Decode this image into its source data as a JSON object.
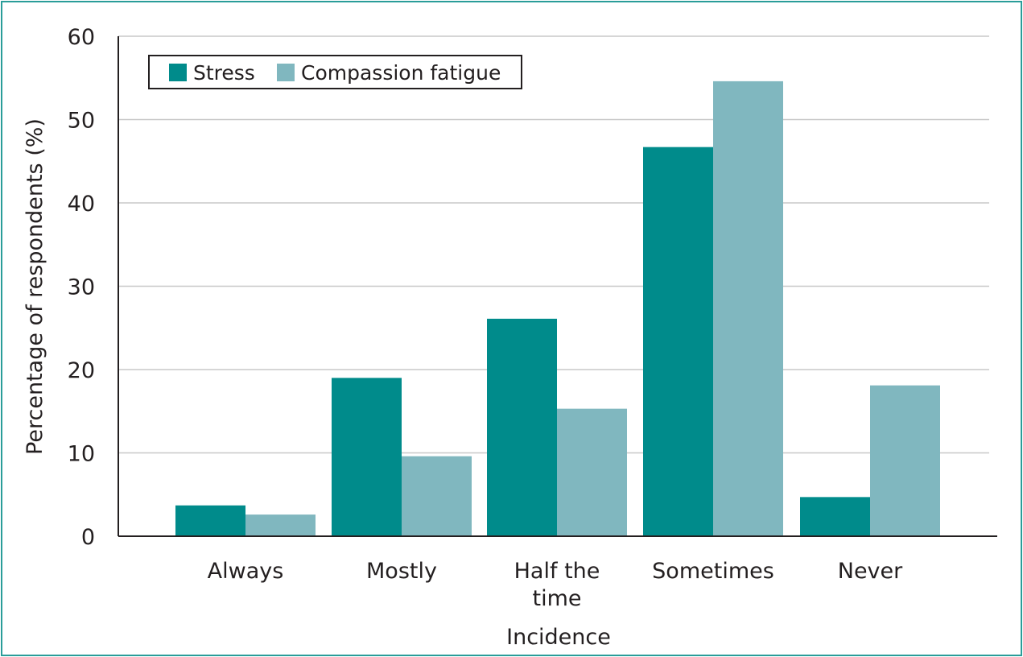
{
  "chart_data": {
    "type": "bar",
    "xlabel": "Incidence",
    "ylabel": "Percentage of respondents (%)",
    "ylim": [
      0,
      60
    ],
    "yticks": [
      "0",
      "10",
      "20",
      "30",
      "40",
      "50",
      "60"
    ],
    "grid": true,
    "legend_position": "top-left",
    "categories": [
      [
        "Always"
      ],
      [
        "Mostly"
      ],
      [
        "Half the",
        "time"
      ],
      [
        "Sometimes"
      ],
      [
        "Never"
      ]
    ],
    "series": [
      {
        "name": "Stress",
        "color": "#008b8b",
        "values": [
          3.7,
          19.0,
          26.1,
          46.7,
          4.7
        ]
      },
      {
        "name": "Compassion fatigue",
        "color": "#80b7bf",
        "values": [
          2.6,
          9.6,
          15.3,
          54.6,
          18.1
        ]
      }
    ]
  }
}
